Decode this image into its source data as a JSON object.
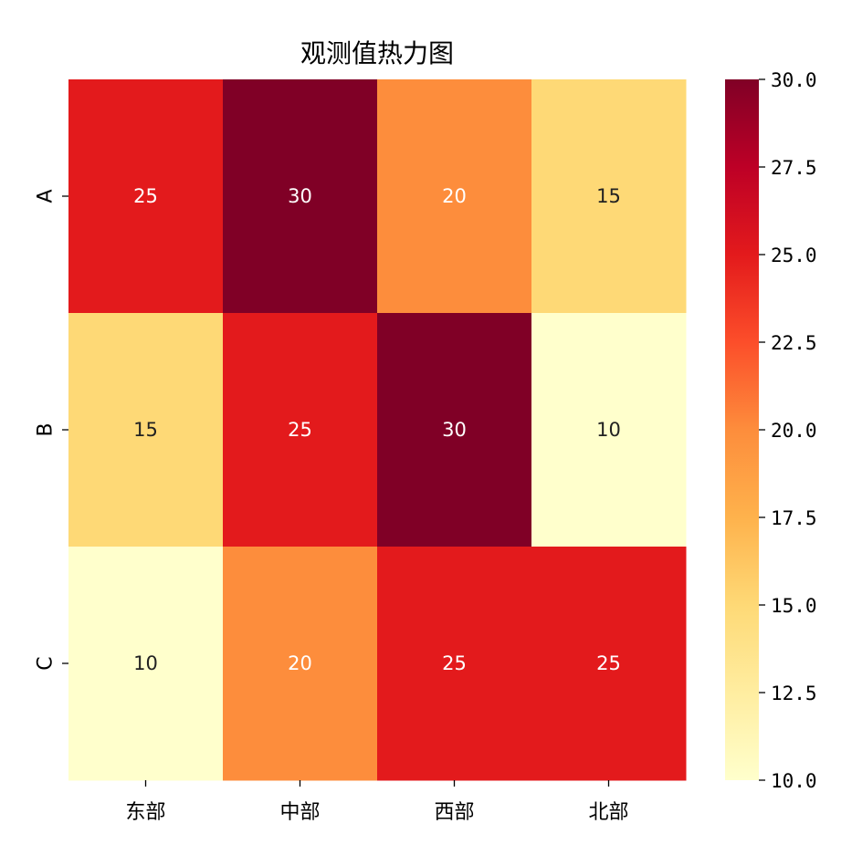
{
  "chart_data": {
    "type": "heatmap",
    "title": "观测值热力图",
    "x_categories": [
      "东部",
      "中部",
      "西部",
      "北部"
    ],
    "y_categories": [
      "A",
      "B",
      "C"
    ],
    "values": [
      [
        25,
        30,
        20,
        15
      ],
      [
        15,
        25,
        30,
        10
      ],
      [
        10,
        20,
        25,
        25
      ]
    ],
    "annotated": true,
    "colormap": "YlOrRd",
    "colorbar": {
      "range": [
        10.0,
        30.0
      ],
      "tick_labels": [
        "10.0",
        "12.5",
        "15.0",
        "17.5",
        "20.0",
        "22.5",
        "25.0",
        "27.5",
        "30.0"
      ],
      "tick_values": [
        10.0,
        12.5,
        15.0,
        17.5,
        20.0,
        22.5,
        25.0,
        27.5,
        30.0
      ]
    },
    "xlabel": "",
    "ylabel": "",
    "grid": false
  }
}
